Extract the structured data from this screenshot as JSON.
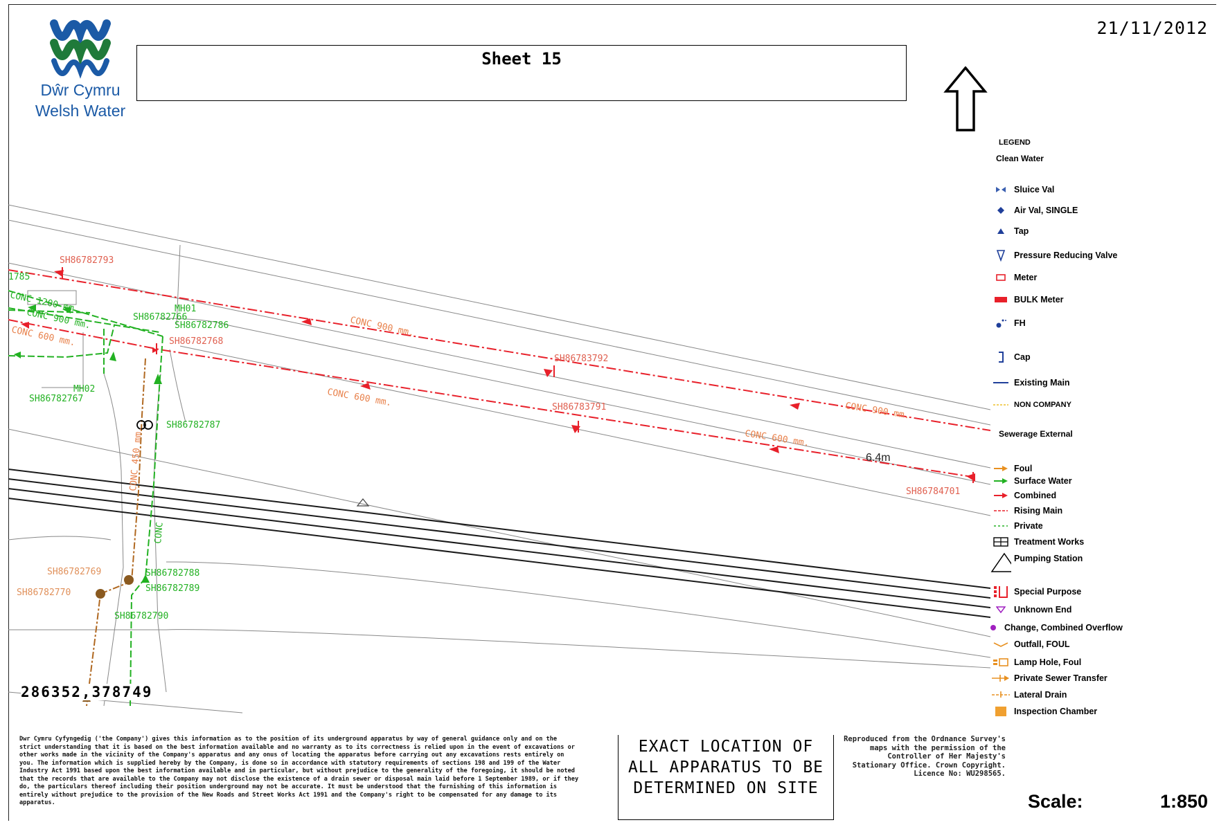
{
  "header": {
    "logo_line1": "Dŵr Cymru",
    "logo_line2": "Welsh Water",
    "sheet_title": "Sheet 15",
    "date": "21/11/2012"
  },
  "map": {
    "asset_labels": {
      "a1": "SH86782793",
      "a2": "1785",
      "a3": "SH86782766",
      "a4": "MH01",
      "a5": "SH86782786",
      "a6": "SH86782768",
      "a7": "MH02",
      "a8": "SH86782767",
      "a9": "SH86782787",
      "a10": "SH86783792",
      "a11": "SH86783791",
      "a12": "SH86784701",
      "a13": "SH86782769",
      "a14": "SH86782770",
      "a15": "SH86782788",
      "a16": "SH86782789",
      "a17": "SH86782790"
    },
    "pipe_labels": {
      "p1": "CONC 900 mm.",
      "p2": "CONC 600 mm.",
      "p3": "CONC 600 mm.",
      "p4": "CONC 900 mm.",
      "p5": "CONC 600 mm.",
      "p6": "CONC 900 mm.",
      "p7": "CONC 1200 mm.",
      "p8": "CONC 450 mm.",
      "p9": "CONC"
    },
    "measurement": "6.4m",
    "coordinates": "286352,378749"
  },
  "legend": {
    "title": "LEGEND",
    "clean_water_heading": "Clean Water",
    "clean_water_items": [
      {
        "label": "Sluice Val",
        "icon": "sluice-valve-icon",
        "color": "#3a5fb0"
      },
      {
        "label": "Air Val, SINGLE",
        "icon": "air-valve-icon",
        "color": "#1f3f9a"
      },
      {
        "label": "Tap",
        "icon": "tap-icon",
        "color": "#1f3f9a"
      },
      {
        "label": "Pressure Reducing Valve",
        "icon": "prv-icon",
        "color": "#1f3f9a"
      },
      {
        "label": "Meter",
        "icon": "meter-icon",
        "color": "#e8202a"
      },
      {
        "label": "BULK Meter",
        "icon": "bulk-meter-icon",
        "color": "#e8202a"
      },
      {
        "label": "FH",
        "icon": "fire-hydrant-icon",
        "color": "#1f3f9a"
      },
      {
        "label": "Cap",
        "icon": "cap-icon",
        "color": "#1f3f9a"
      },
      {
        "label": "Existing Main",
        "icon": "existing-main-icon",
        "color": "#1f3f9a"
      },
      {
        "label": "NON COMPANY",
        "icon": "non-company-icon",
        "color": "#f2d060"
      }
    ],
    "sewerage_heading": "Sewerage External",
    "sewerage_items": [
      {
        "label": "Foul",
        "icon": "foul-icon",
        "color": "#e89020"
      },
      {
        "label": "Surface Water",
        "icon": "surface-water-icon",
        "color": "#22b122"
      },
      {
        "label": "Combined",
        "icon": "combined-icon",
        "color": "#e8202a"
      },
      {
        "label": "Rising Main",
        "icon": "rising-main-icon",
        "color": "#e8202a"
      },
      {
        "label": "Private",
        "icon": "private-icon",
        "color": "#22b122"
      },
      {
        "label": "Treatment Works",
        "icon": "treatment-works-icon",
        "color": "#000000"
      },
      {
        "label": "Pumping Station",
        "icon": "pumping-station-icon",
        "color": "#000000"
      },
      {
        "label": "Special Purpose",
        "icon": "special-purpose-icon",
        "color": "#e8202a"
      },
      {
        "label": "Unknown End",
        "icon": "unknown-end-icon",
        "color": "#a020c0"
      },
      {
        "label": "Change, Combined Overflow",
        "icon": "combined-overflow-icon",
        "color": "#a020c0"
      },
      {
        "label": "Outfall, FOUL",
        "icon": "outfall-icon",
        "color": "#e89020"
      },
      {
        "label": "Lamp Hole, Foul",
        "icon": "lamp-hole-icon",
        "color": "#e89020"
      },
      {
        "label": "Private Sewer Transfer",
        "icon": "private-sewer-transfer-icon",
        "color": "#e89020"
      },
      {
        "label": "Lateral Drain",
        "icon": "lateral-drain-icon",
        "color": "#e89020"
      },
      {
        "label": "Inspection Chamber",
        "icon": "inspection-chamber-icon",
        "color": "#f0a030"
      }
    ]
  },
  "footer": {
    "disclaimer": "Dwr Cymru Cyfyngedig ('the Company') gives this information as to the position of its underground apparatus by way of general guidance only and on the strict understanding that it is based on the best information available and no warranty as to its correctness is relied upon in the event of excavations or other works made in the vicinity of the Company's apparatus and any onus of locating the apparatus before carrying out any excavations rests entirely on you. The information which is supplied hereby by the Company, is done so in accordance with statutory requirements of sections 198 and 199 of the Water Industry Act 1991 based upon the best information available and in particular, but without prejudice to the generality of the foregoing, it should be noted that the records that are available to the Company may not disclose the existence of a drain sewer or disposal main laid before 1 September 1989, or if they do, the particulars thereof including their position underground may not be accurate. It must be understood that the furnishing of this information is entirely without prejudice to the provision of the New Roads and Street Works Act 1991 and the Company's right to be compensated for any damage to its apparatus.",
    "exact_location": "EXACT LOCATION OF ALL APPARATUS TO BE DETERMINED ON SITE",
    "copyright": "Reproduced from the Ordnance Survey's maps with the permission of the Controller of Her Majesty's Stationary Office. Crown Copyright. Licence No: WU298565.",
    "scale_label": "Scale:",
    "scale_value": "1:850"
  },
  "colors": {
    "brand_blue": "#1b5aa6",
    "brand_green": "#1f7a3a",
    "combined": "#e8202a",
    "surface_water": "#22b122",
    "foul": "#b06820"
  }
}
